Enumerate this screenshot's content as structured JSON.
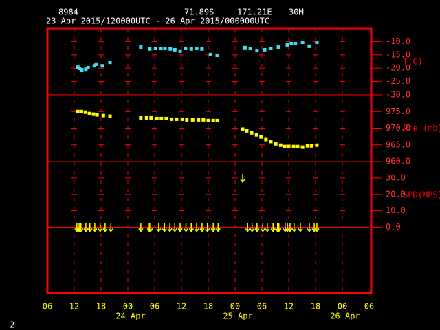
{
  "header": {
    "station": "8984",
    "lat": "71.89S",
    "lon": "171.21E",
    "height": "30M",
    "period": "23 Apr 2015/120000UTC - 26 Apr 2015/000000UTC",
    "page": "2"
  },
  "chart_data": [
    {
      "type": "scatter",
      "ylabel": "T(C)",
      "xlim": [
        0,
        72
      ],
      "ylim": [
        -30,
        -5
      ],
      "yticks": [
        {
          "value": -10,
          "label": "-10.0"
        },
        {
          "value": -15,
          "label": "-15.0"
        },
        {
          "value": -20,
          "label": "-20.0"
        },
        {
          "value": -25,
          "label": "-25.0"
        },
        {
          "value": -30,
          "label": "-30.0"
        }
      ],
      "series": [
        {
          "color": "#40e0f0",
          "x": [
            6.8,
            7.2,
            7.7,
            8.6,
            9.1,
            10.5,
            10.9,
            12.3,
            14.0,
            20.9,
            22.9,
            24.2,
            25.4,
            26.3,
            27.5,
            28.5,
            29.7,
            30.9,
            32.2,
            33.4,
            34.6,
            36.5,
            38.0,
            44.2,
            45.4,
            46.9,
            48.6,
            50.0,
            51.7,
            53.7,
            54.6,
            55.5,
            57.1,
            58.6,
            60.3
          ],
          "values": [
            -19.6,
            -20.1,
            -20.6,
            -20.4,
            -19.8,
            -19.1,
            -18.5,
            -19.1,
            -17.8,
            -12.1,
            -12.8,
            -12.6,
            -12.6,
            -12.6,
            -12.8,
            -13.1,
            -13.6,
            -12.6,
            -12.8,
            -12.6,
            -12.8,
            -14.9,
            -15.2,
            -12.3,
            -12.6,
            -13.4,
            -13.1,
            -12.6,
            -12.1,
            -11.3,
            -10.8,
            -10.8,
            -10.3,
            -11.8,
            -10.3
          ]
        }
      ]
    },
    {
      "type": "scatter",
      "ylabel": "Pre (mb)",
      "xlim": [
        0,
        72
      ],
      "ylim": [
        960,
        980
      ],
      "yticks": [
        {
          "value": 975,
          "label": "975.0"
        },
        {
          "value": 970,
          "label": "970.0"
        },
        {
          "value": 965,
          "label": "965.0"
        },
        {
          "value": 960,
          "label": "960.0"
        }
      ],
      "series": [
        {
          "color": "#ffff00",
          "x": [
            6.8,
            7.6,
            8.5,
            9.4,
            10.3,
            11.1,
            12.5,
            14.0,
            20.9,
            22.2,
            23.2,
            24.5,
            25.5,
            26.6,
            27.8,
            28.9,
            30.2,
            31.2,
            32.5,
            33.8,
            34.9,
            36.0,
            37.1,
            38.0,
            43.7,
            44.6,
            45.7,
            46.8,
            47.8,
            48.9,
            50.0,
            51.1,
            52.2,
            53.1,
            54.0,
            55.1,
            56.0,
            57.1,
            58.2,
            59.1,
            60.3
          ],
          "values": [
            975.0,
            975.0,
            974.8,
            974.4,
            974.2,
            974.0,
            973.8,
            973.6,
            973.1,
            973.1,
            973.1,
            972.9,
            972.9,
            972.9,
            972.7,
            972.7,
            972.7,
            972.5,
            972.5,
            972.5,
            972.5,
            972.3,
            972.3,
            972.3,
            969.7,
            969.2,
            968.6,
            968.0,
            967.4,
            966.6,
            966.0,
            965.3,
            964.9,
            964.5,
            964.5,
            964.5,
            964.5,
            964.3,
            964.7,
            964.7,
            964.9
          ]
        }
      ]
    },
    {
      "type": "wind",
      "ylabel": "SPD(MPS)",
      "xlim": [
        0,
        72
      ],
      "ylim": [
        -40,
        40
      ],
      "zero_line": true,
      "yticks": [
        {
          "value": 30,
          "label": "30.0"
        },
        {
          "value": 20,
          "label": "20.0"
        },
        {
          "value": 10,
          "label": "10.0"
        },
        {
          "value": 0,
          "label": "0.0"
        }
      ],
      "xticks": [
        {
          "value": 0,
          "label": "06"
        },
        {
          "value": 6,
          "label": "12"
        },
        {
          "value": 12,
          "label": "18"
        },
        {
          "value": 18,
          "label": "00"
        },
        {
          "value": 24,
          "label": "06"
        },
        {
          "value": 30,
          "label": "12"
        },
        {
          "value": 36,
          "label": "18"
        },
        {
          "value": 42,
          "label": "00"
        },
        {
          "value": 48,
          "label": "06"
        },
        {
          "value": 54,
          "label": "12"
        },
        {
          "value": 60,
          "label": "18"
        },
        {
          "value": 66,
          "label": "00"
        },
        {
          "value": 72,
          "label": "06"
        }
      ],
      "date_labels": [
        {
          "value": 18,
          "label": "24 Apr"
        },
        {
          "value": 42,
          "label": "25 Apr"
        },
        {
          "value": 66,
          "label": "26 Apr"
        }
      ],
      "series": [
        {
          "color": "#ffff00",
          "x": [
            6.6,
            7.1,
            7.5,
            8.6,
            9.5,
            10.6,
            11.8,
            12.9,
            14.2,
            20.9,
            22.8,
            23.1,
            24.9,
            26.2,
            27.4,
            28.5,
            29.7,
            31.0,
            32.2,
            33.4,
            34.6,
            35.8,
            37.1,
            38.2,
            43.7,
            44.8,
            45.8,
            46.9,
            48.2,
            49.2,
            50.5,
            51.5,
            51.8,
            53.2,
            53.7,
            54.3,
            55.2,
            56.6,
            58.6,
            59.7,
            60.3
          ],
          "values": [
            0,
            0,
            0,
            0,
            0,
            0,
            0,
            0,
            0,
            0,
            0,
            0,
            0,
            0,
            0,
            0,
            0,
            0,
            0,
            0,
            0,
            0,
            0,
            0,
            30,
            0,
            0,
            0,
            0,
            0,
            0,
            0,
            0,
            0,
            0,
            0,
            0,
            0,
            0,
            0,
            0
          ]
        }
      ]
    }
  ]
}
